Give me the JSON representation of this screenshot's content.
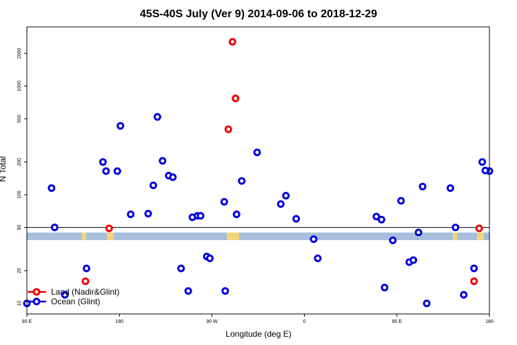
{
  "chart_data": {
    "type": "scatter",
    "title": "45S-40S July (Ver 9)   2014-09-06 to 2018-12-29",
    "xlabel": "Longitude (deg E)",
    "ylabel": "N Total",
    "x_ticks": [
      {
        "value": 90,
        "label": "90 E"
      },
      {
        "value": 180,
        "label": "180"
      },
      {
        "value": 270,
        "label": "90 W"
      },
      {
        "value": 360,
        "label": "0"
      },
      {
        "value": 450,
        "label": "90 E"
      },
      {
        "value": 540,
        "label": "180"
      }
    ],
    "xlim": [
      90,
      540
    ],
    "y_scale": "log",
    "ylim": [
      8,
      3500
    ],
    "y_ticks": [
      10,
      20,
      50,
      100,
      200,
      500,
      1000,
      2000
    ],
    "reference_line_y": 50,
    "legend": {
      "position": "bottom-left",
      "entries": [
        {
          "label": "Land (Nadir&Glint)",
          "color": "#ee0000"
        },
        {
          "label": "Ocean (Glint)",
          "color": "#0000dd"
        }
      ]
    },
    "series": [
      {
        "name": "Land (Nadir&Glint)",
        "color": "#ee0000",
        "points": [
          [
            147,
            16
          ],
          [
            170,
            49
          ],
          [
            290,
            2550
          ],
          [
            293,
            770
          ],
          [
            286,
            400
          ],
          [
            525,
            16
          ],
          [
            530,
            49
          ]
        ]
      },
      {
        "name": "Ocean (Glint)",
        "color": "#0000dd",
        "points": [
          [
            90,
            10
          ],
          [
            114,
            115
          ],
          [
            117,
            50
          ],
          [
            127,
            12
          ],
          [
            148,
            21
          ],
          [
            164,
            200
          ],
          [
            167,
            165
          ],
          [
            178,
            165
          ],
          [
            181,
            430
          ],
          [
            191,
            66
          ],
          [
            208,
            67
          ],
          [
            213,
            122
          ],
          [
            217,
            520
          ],
          [
            222,
            205
          ],
          [
            228,
            150
          ],
          [
            232,
            145
          ],
          [
            240,
            21
          ],
          [
            247,
            13
          ],
          [
            251,
            62
          ],
          [
            256,
            64
          ],
          [
            259,
            64
          ],
          [
            265,
            27
          ],
          [
            268,
            26
          ],
          [
            282,
            86
          ],
          [
            283,
            13
          ],
          [
            294,
            66
          ],
          [
            299,
            134
          ],
          [
            314,
            245
          ],
          [
            337,
            82
          ],
          [
            342,
            98
          ],
          [
            352,
            60
          ],
          [
            369,
            39
          ],
          [
            373,
            26
          ],
          [
            430,
            63
          ],
          [
            435,
            59
          ],
          [
            438,
            14
          ],
          [
            446,
            38
          ],
          [
            454,
            88
          ],
          [
            462,
            24
          ],
          [
            466,
            25
          ],
          [
            471,
            45
          ],
          [
            475,
            119
          ],
          [
            479,
            10
          ],
          [
            502,
            115
          ],
          [
            507,
            50
          ],
          [
            515,
            12
          ],
          [
            525,
            21
          ],
          [
            540,
            165
          ],
          [
            536,
            167
          ],
          [
            533,
            200
          ]
        ]
      }
    ]
  }
}
